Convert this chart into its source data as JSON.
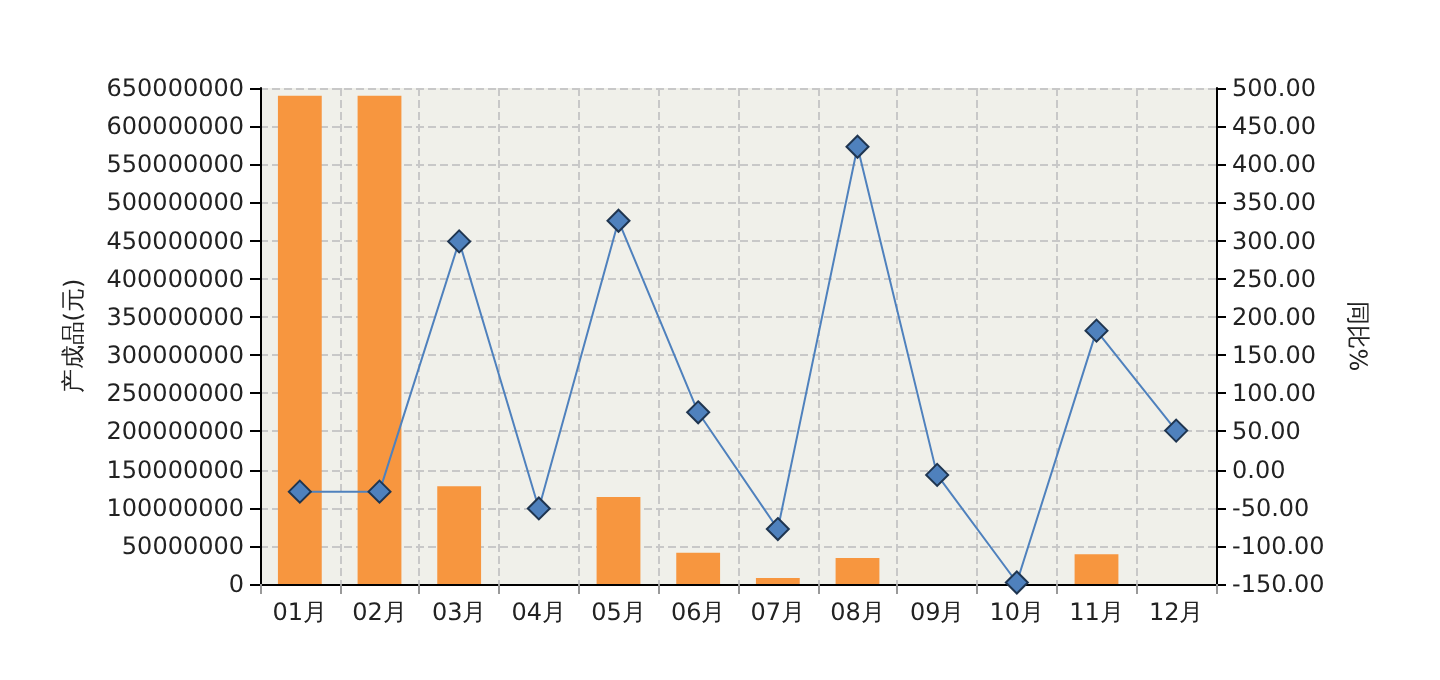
{
  "chart_data": {
    "type": "bar",
    "ylabel": "产成品(元)",
    "y2label": "同比%",
    "categories": [
      "01月",
      "02月",
      "03月",
      "04月",
      "05月",
      "06月",
      "07月",
      "08月",
      "09月",
      "10月",
      "11月",
      "12月"
    ],
    "series": [
      {
        "color": "#f7963f",
        "values": [
          640000000,
          640000000,
          128000000,
          0,
          114000000,
          41000000,
          8000000,
          34000000,
          0,
          0,
          39000000,
          0
        ]
      },
      {
        "type": "line",
        "axis": "y2",
        "color": "#4f81bd",
        "marker": "diamond",
        "values": [
          -29,
          -29,
          299,
          -51,
          326,
          75,
          -78,
          423,
          -7,
          -148,
          182,
          51
        ]
      }
    ],
    "ylim": [
      0,
      650000000
    ],
    "yticks": [
      0,
      50000000,
      100000000,
      150000000,
      200000000,
      250000000,
      300000000,
      350000000,
      400000000,
      450000000,
      500000000,
      550000000,
      600000000,
      650000000
    ],
    "y2lim": [
      -150,
      500
    ],
    "y2ticks": [
      {
        "value": -150,
        "label": "-150.00"
      },
      {
        "value": -100,
        "label": "-100.00"
      },
      {
        "value": -50,
        "label": "-50.00"
      },
      {
        "value": 0,
        "label": "0.00"
      },
      {
        "value": 50,
        "label": "50.00"
      },
      {
        "value": 100,
        "label": "100.00"
      },
      {
        "value": 150,
        "label": "150.00"
      },
      {
        "value": 200,
        "label": "200.00"
      },
      {
        "value": 250,
        "label": "250.00"
      },
      {
        "value": 300,
        "label": "300.00"
      },
      {
        "value": 350,
        "label": "350.00"
      },
      {
        "value": 400,
        "label": "400.00"
      },
      {
        "value": 450,
        "label": "450.00"
      },
      {
        "value": 500,
        "label": "500.00"
      }
    ],
    "grid": true
  }
}
